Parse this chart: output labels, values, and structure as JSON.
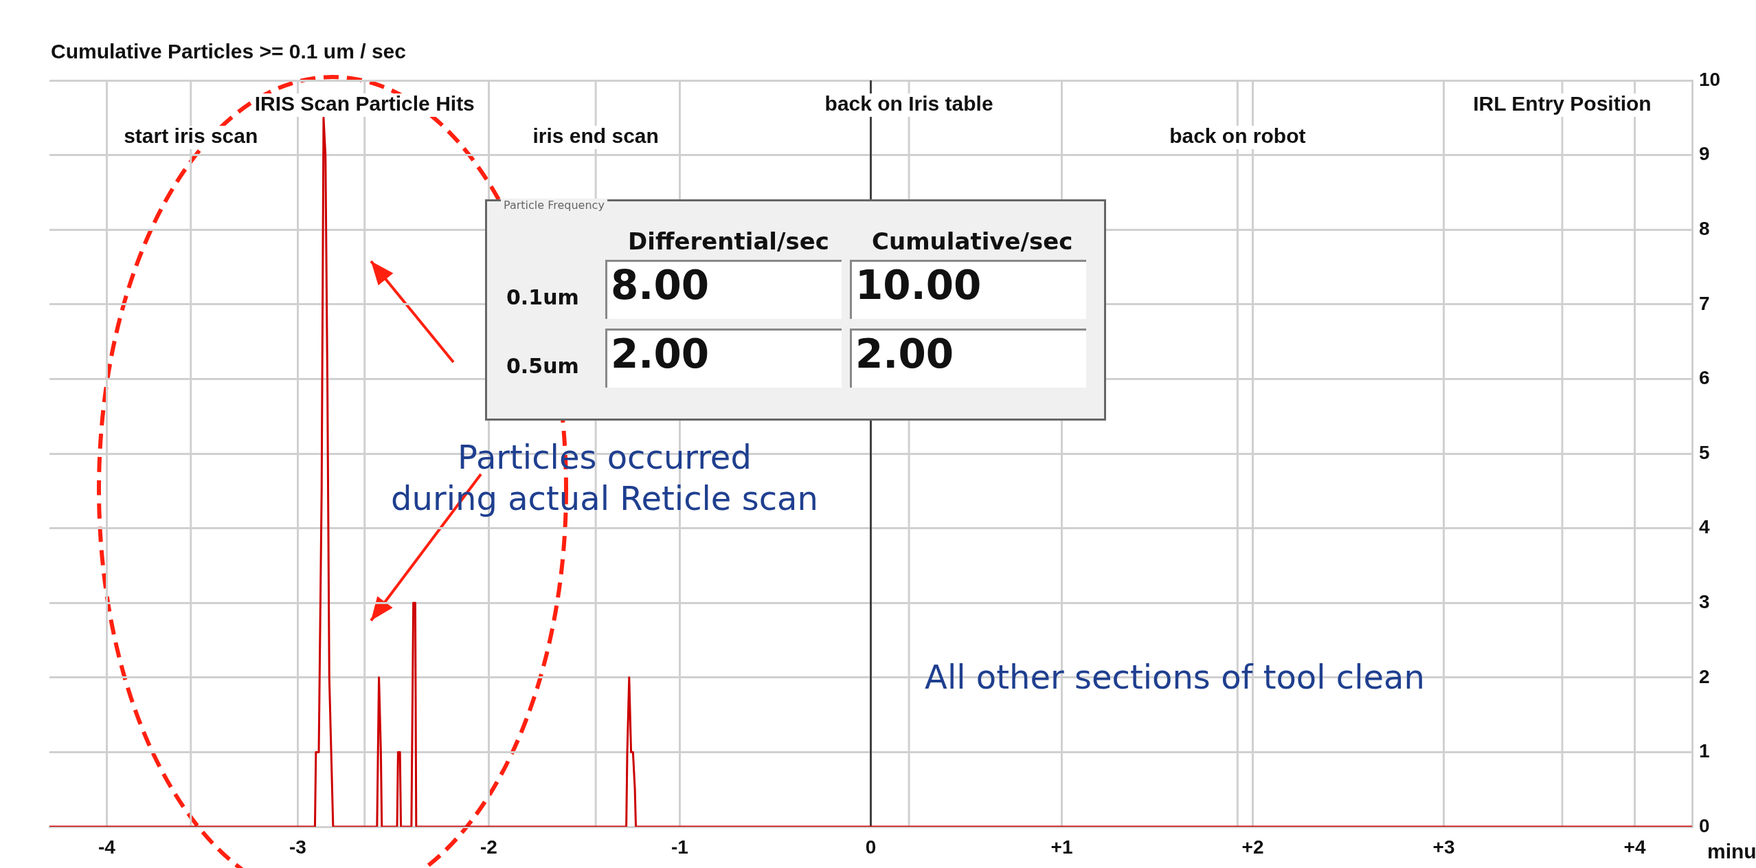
{
  "chart_data": {
    "type": "line",
    "title": "Cumulative Particles >= 0.1 um / sec",
    "xlabel": "minu",
    "x": [
      -4.3,
      -2.91,
      -2.905,
      -2.89,
      -2.875,
      -2.865,
      -2.855,
      -2.845,
      -2.835,
      -2.825,
      -2.815,
      -2.585,
      -2.58,
      -2.575,
      -2.565,
      -2.56,
      -2.48,
      -2.475,
      -2.465,
      -2.46,
      -2.405,
      -2.4,
      -2.395,
      -2.385,
      -2.38,
      -1.28,
      -1.275,
      -1.265,
      -1.255,
      -1.245,
      -1.235,
      -1.23,
      4.3
    ],
    "values": [
      0,
      0,
      1,
      1,
      4.5,
      9.5,
      9,
      6,
      2,
      1,
      0,
      0,
      1,
      2,
      1,
      0,
      0,
      1,
      1,
      0,
      0,
      1.5,
      3,
      3,
      0,
      0,
      1,
      2,
      1,
      1,
      0.5,
      0,
      0
    ],
    "color": "#cc0000",
    "xlim": [
      -4.3,
      4.3
    ],
    "xticks": [
      -4,
      -3,
      -2,
      -1,
      0,
      {
        "value": 1,
        "label": "+1"
      },
      {
        "value": 2,
        "label": "+2"
      },
      {
        "value": 3,
        "label": "+3"
      },
      {
        "value": 4,
        "label": "+4"
      }
    ],
    "ylim": [
      0,
      10
    ],
    "yticks": [
      0,
      1,
      2,
      3,
      4,
      5,
      6,
      7,
      8,
      9,
      10
    ],
    "grid": true,
    "ref_lines": [
      {
        "axis": "x",
        "value": -3.56,
        "label": "start iris scan",
        "color": "#d0d0d0"
      },
      {
        "axis": "x",
        "value": -2.65,
        "label": "IRIS Scan Particle Hits",
        "color": "#d0d0d0"
      },
      {
        "axis": "x",
        "value": -1.44,
        "label": "iris end scan",
        "color": "#d0d0d0"
      },
      {
        "axis": "x",
        "value": 0.2,
        "label": "back on Iris table",
        "color": "#d0d0d0"
      },
      {
        "axis": "x",
        "value": 1.92,
        "label": "back on robot",
        "color": "#d0d0d0"
      },
      {
        "axis": "x",
        "value": 3.62,
        "label": "IRL Entry Position",
        "color": "#d0d0d0"
      },
      {
        "axis": "x",
        "value": 0,
        "label": null,
        "color": "#404040"
      }
    ],
    "annotations": [
      "Particle Frequency",
      "Differential/sec",
      "Cumulative/sec",
      "0.1um",
      "8.00",
      "10.00",
      "0.5um",
      "2.00",
      "2.00",
      "Particles occurred\nduring actual Reticle scan",
      "All other sections of tool clean"
    ]
  }
}
